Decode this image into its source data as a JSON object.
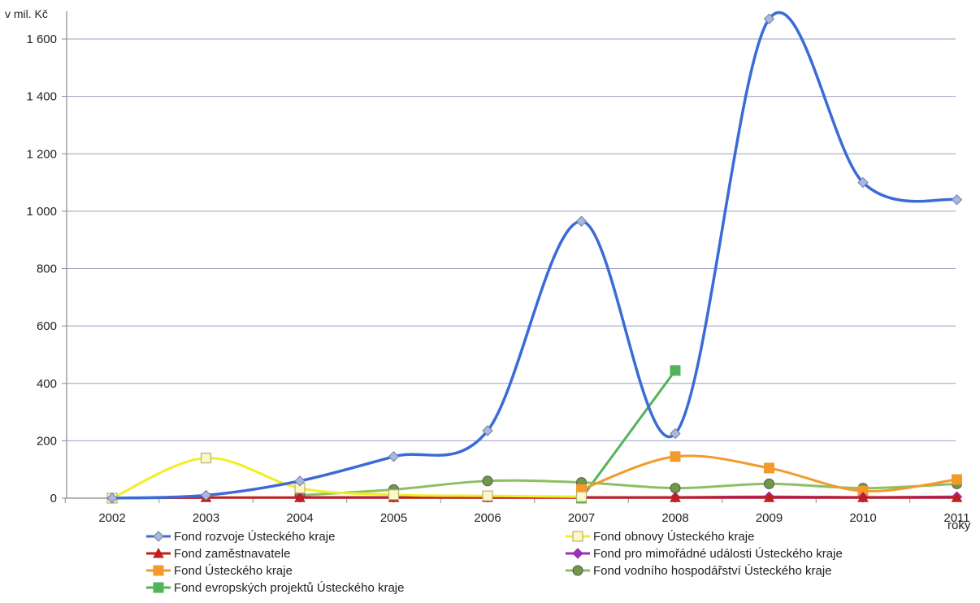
{
  "chart_data": {
    "type": "line",
    "title": "",
    "ylabel": "v mil. Kč",
    "xlabel": "roky",
    "x": [
      "2002",
      "2003",
      "2004",
      "2005",
      "2006",
      "2007",
      "2008",
      "2009",
      "2010",
      "2011"
    ],
    "ylim": [
      0,
      1700
    ],
    "yticks": [
      0,
      200,
      400,
      600,
      800,
      1000,
      1200,
      1400,
      1600
    ],
    "ytick_labels": [
      "0",
      "200",
      "400",
      "600",
      "800",
      "1 000",
      "1 200",
      "1 400",
      "1 600"
    ],
    "grid": true,
    "legend_position": "bottom",
    "series": [
      {
        "name": "Fond rozvoje Ústeckého kraje",
        "color": "#3a6bd6",
        "marker": "diamond",
        "values": [
          0,
          10,
          60,
          145,
          235,
          965,
          225,
          1670,
          1100,
          1040
        ]
      },
      {
        "name": "Fond obnovy Ústeckého kraje",
        "color": "#f2ee24",
        "marker": "square-open",
        "values": [
          0,
          140,
          35,
          12,
          8,
          5,
          null,
          null,
          null,
          null
        ]
      },
      {
        "name": "Fond zaměstnavatele",
        "color": "#c21e1e",
        "marker": "triangle",
        "values": [
          0,
          2,
          2,
          2,
          2,
          2,
          2,
          2,
          2,
          2
        ]
      },
      {
        "name": "Fond pro mimořádné události Ústeckého kraje",
        "color": "#9b2fb5",
        "marker": "diamond",
        "values": [
          null,
          null,
          3,
          3,
          3,
          3,
          3,
          5,
          3,
          5
        ]
      },
      {
        "name": "Fond Ústeckého kraje",
        "color": "#f39a2b",
        "marker": "square",
        "values": [
          null,
          null,
          null,
          null,
          null,
          30,
          145,
          105,
          25,
          65
        ]
      },
      {
        "name": "Fond vodního hospodářství Ústeckého kraje",
        "color": "#8cc063",
        "marker": "circle",
        "values": [
          null,
          null,
          10,
          30,
          60,
          55,
          35,
          50,
          35,
          50
        ]
      },
      {
        "name": "Fond evropských projektů Ústeckého kraje",
        "color": "#52b35a",
        "marker": "square",
        "values": [
          null,
          null,
          null,
          null,
          null,
          0,
          445,
          null,
          null,
          null
        ]
      }
    ]
  }
}
